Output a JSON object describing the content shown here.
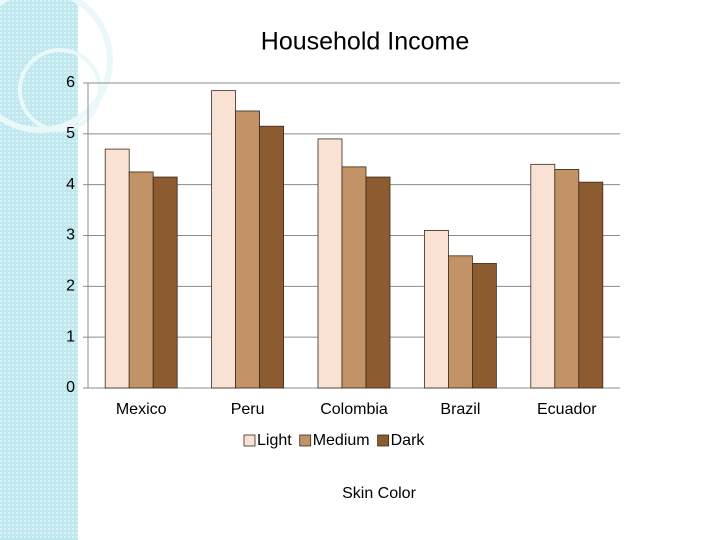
{
  "chart_data": {
    "type": "bar",
    "title": "Household Income",
    "x_label": "Skin Color",
    "categories": [
      "Mexico",
      "Peru",
      "Colombia",
      "Brazil",
      "Ecuador"
    ],
    "series": [
      {
        "name": "Light",
        "color": "#f9e1d3",
        "values": [
          4.7,
          5.85,
          4.9,
          3.1,
          4.4
        ]
      },
      {
        "name": "Medium",
        "color": "#c19366",
        "values": [
          4.25,
          5.45,
          4.35,
          2.6,
          4.3
        ]
      },
      {
        "name": "Dark",
        "color": "#8c5b2f",
        "values": [
          4.15,
          5.15,
          4.15,
          2.45,
          4.05
        ]
      }
    ],
    "ylim": [
      0,
      6
    ],
    "yticks": [
      0,
      1,
      2,
      3,
      4,
      5,
      6
    ],
    "grid": true,
    "legend": "bottom"
  }
}
